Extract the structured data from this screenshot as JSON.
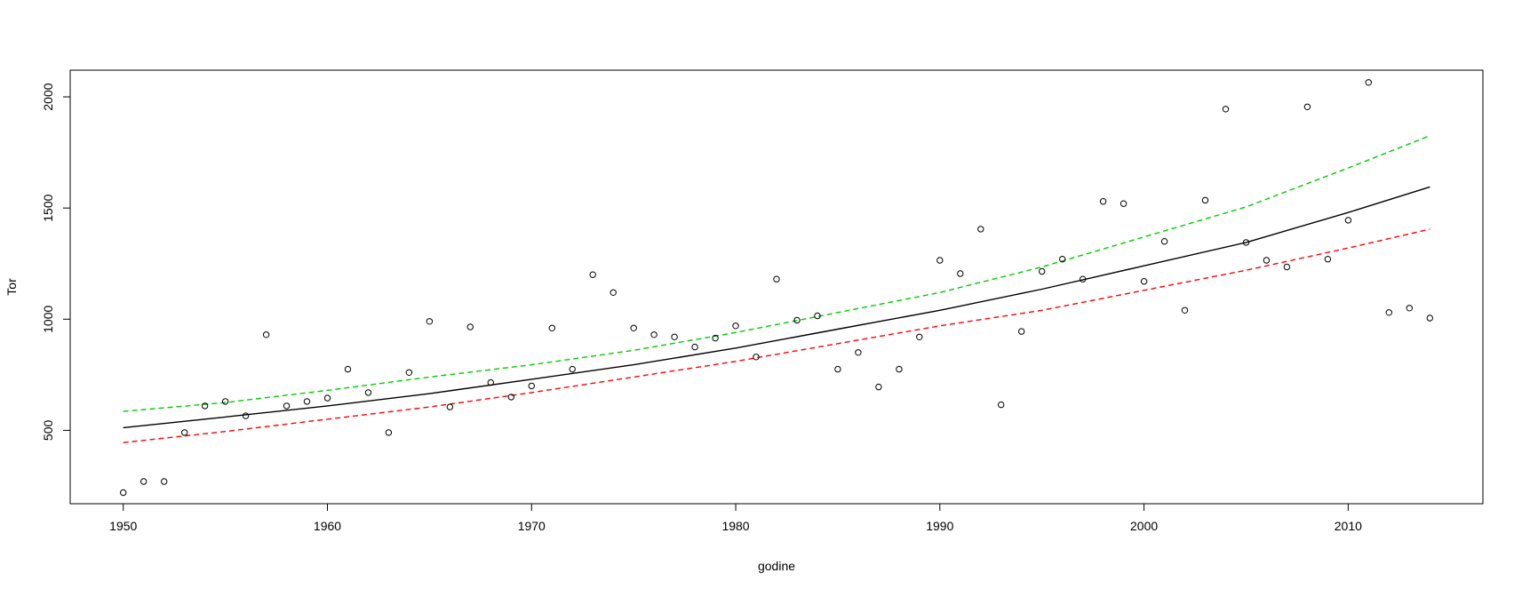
{
  "chart_data": {
    "type": "scatter",
    "title": "",
    "xlabel": "godine",
    "ylabel": "Tor",
    "xlim": [
      1947.4,
      2016.6
    ],
    "ylim": [
      170,
      2120
    ],
    "x_ticks": [
      1950,
      1960,
      1970,
      1980,
      1990,
      2000,
      2010
    ],
    "y_ticks": [
      500,
      1000,
      1500,
      2000
    ],
    "grid": false,
    "legend": "none",
    "colors": {
      "points": "#000000",
      "fit": "#000000",
      "upper": "#00cc00",
      "lower": "#ff0000"
    },
    "points": {
      "x": [
        1950,
        1951,
        1952,
        1953,
        1954,
        1955,
        1956,
        1957,
        1958,
        1959,
        1960,
        1961,
        1962,
        1963,
        1964,
        1965,
        1966,
        1967,
        1968,
        1969,
        1970,
        1971,
        1972,
        1973,
        1974,
        1975,
        1976,
        1977,
        1978,
        1979,
        1980,
        1981,
        1982,
        1983,
        1984,
        1985,
        1986,
        1987,
        1988,
        1989,
        1990,
        1991,
        1992,
        1993,
        1994,
        1995,
        1996,
        1997,
        1998,
        1999,
        2000,
        2001,
        2002,
        2003,
        2004,
        2005,
        2006,
        2007,
        2008,
        2009,
        2010,
        2011,
        2012,
        2013,
        2014
      ],
      "y": [
        220,
        270,
        270,
        490,
        610,
        630,
        565,
        930,
        610,
        630,
        645,
        775,
        670,
        490,
        760,
        990,
        605,
        965,
        715,
        650,
        700,
        960,
        775,
        1200,
        1120,
        960,
        930,
        920,
        875,
        915,
        970,
        830,
        1180,
        995,
        1015,
        775,
        850,
        695,
        775,
        920,
        1265,
        1205,
        1405,
        615,
        945,
        1215,
        1270,
        1180,
        1530,
        1520,
        1170,
        1350,
        1040,
        1535,
        1945,
        1345,
        1265,
        1235,
        1955,
        1270,
        1445,
        2065,
        1030,
        1050,
        1005
      ]
    },
    "series": [
      {
        "style": "solid",
        "color": "#000000",
        "x": [
          1950,
          1955,
          1960,
          1965,
          1970,
          1975,
          1980,
          1985,
          1990,
          1995,
          2000,
          2005,
          2010,
          2014
        ],
        "y": [
          512,
          560,
          610,
          665,
          730,
          795,
          870,
          955,
          1040,
          1135,
          1240,
          1345,
          1480,
          1595
        ]
      },
      {
        "style": "dashed",
        "color": "#00cc00",
        "x": [
          1950,
          1955,
          1960,
          1965,
          1970,
          1975,
          1980,
          1985,
          1990,
          1995,
          2000,
          2005,
          2010,
          2014
        ],
        "y": [
          585,
          625,
          680,
          740,
          795,
          860,
          940,
          1030,
          1120,
          1235,
          1370,
          1505,
          1680,
          1825
        ]
      },
      {
        "style": "dashed",
        "color": "#ff0000",
        "x": [
          1950,
          1955,
          1960,
          1965,
          1970,
          1975,
          1980,
          1985,
          1990,
          1995,
          2000,
          2005,
          2010,
          2014
        ],
        "y": [
          445,
          495,
          550,
          605,
          670,
          740,
          810,
          890,
          970,
          1040,
          1130,
          1220,
          1320,
          1405
        ]
      }
    ]
  }
}
